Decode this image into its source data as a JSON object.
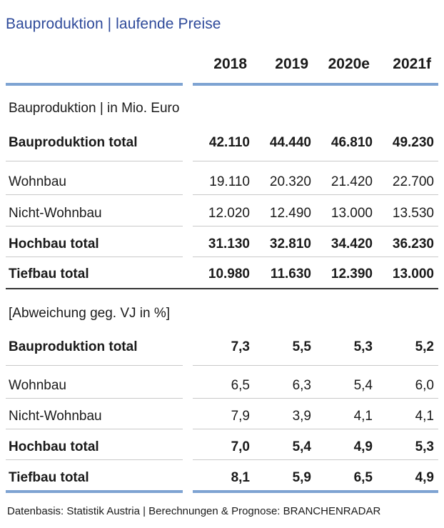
{
  "title": "Bauproduktion | laufende Preise",
  "source": "Datenbasis: Statistik Austria | Berechnungen & Prognose: BRANCHENRADAR",
  "chart_data": {
    "type": "table",
    "columns": [
      "2018",
      "2019",
      "2020e",
      "2021f"
    ],
    "sections": [
      {
        "title": "Bauproduktion | in Mio. Euro",
        "rows": [
          {
            "label": "Bauproduktion total",
            "bold": true,
            "values": [
              "42.110",
              "44.440",
              "46.810",
              "49.230"
            ]
          },
          {
            "label": "Wohnbau",
            "bold": false,
            "values": [
              "19.110",
              "20.320",
              "21.420",
              "22.700"
            ]
          },
          {
            "label": "Nicht-Wohnbau",
            "bold": false,
            "values": [
              "12.020",
              "12.490",
              "13.000",
              "13.530"
            ]
          },
          {
            "label": "Hochbau total",
            "bold": true,
            "values": [
              "31.130",
              "32.810",
              "34.420",
              "36.230"
            ]
          },
          {
            "label": "Tiefbau total",
            "bold": true,
            "values": [
              "10.980",
              "11.630",
              "12.390",
              "13.000"
            ]
          }
        ]
      },
      {
        "title": "[Abweichung geg. VJ in %]",
        "rows": [
          {
            "label": "Bauproduktion total",
            "bold": true,
            "values": [
              "7,3",
              "5,5",
              "5,3",
              "5,2"
            ]
          },
          {
            "label": "Wohnbau",
            "bold": false,
            "values": [
              "6,5",
              "6,3",
              "5,4",
              "6,0"
            ]
          },
          {
            "label": "Nicht-Wohnbau",
            "bold": false,
            "values": [
              "7,9",
              "3,9",
              "4,1",
              "4,1"
            ]
          },
          {
            "label": "Hochbau total",
            "bold": true,
            "values": [
              "7,0",
              "5,4",
              "4,9",
              "5,3"
            ]
          },
          {
            "label": "Tiefbau total",
            "bold": true,
            "values": [
              "8,1",
              "5,9",
              "6,5",
              "4,9"
            ]
          }
        ]
      }
    ]
  }
}
